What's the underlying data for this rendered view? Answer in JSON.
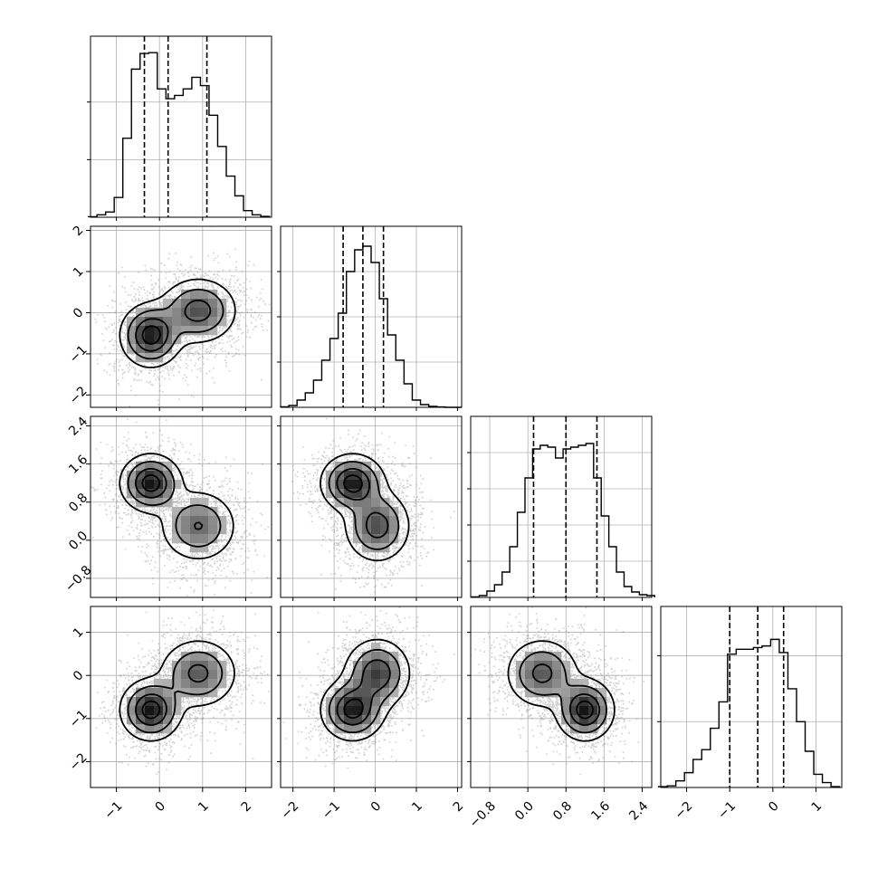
{
  "chart_data": {
    "type": "corner",
    "variables": [
      {
        "range": [
          -1.6,
          2.6
        ],
        "ticks": [
          -1,
          0,
          1,
          2
        ],
        "tick_labels": [
          "−1",
          "0",
          "1",
          "2"
        ],
        "quantiles": [
          -0.35,
          0.2,
          1.1
        ],
        "hist": {
          "x": [
            -1.55,
            -1.35,
            -1.15,
            -0.95,
            -0.75,
            -0.55,
            -0.35,
            -0.15,
            0.05,
            0.25,
            0.45,
            0.65,
            0.85,
            1.05,
            1.25,
            1.45,
            1.65,
            1.85,
            2.05,
            2.25,
            2.45
          ],
          "values": [
            0.3,
            1.5,
            3.2,
            12.0,
            48.0,
            90.0,
            99.5,
            100.0,
            78.0,
            72.0,
            74.0,
            78.0,
            85.0,
            80.0,
            62.0,
            43.0,
            25.0,
            13.0,
            4.0,
            1.5,
            0.5
          ]
        },
        "hist_ylim": [
          0,
          110
        ],
        "hist_yticks": [
          35,
          70
        ]
      },
      {
        "range": [
          -2.3,
          2.1
        ],
        "ticks": [
          -2,
          -1,
          0,
          1,
          2
        ],
        "tick_labels": [
          "−2",
          "−1",
          "0",
          "1",
          "2"
        ],
        "quantiles": [
          -0.78,
          -0.3,
          0.2
        ],
        "hist": {
          "x": [
            -2.2,
            -2.0,
            -1.8,
            -1.6,
            -1.4,
            -1.2,
            -1.0,
            -0.8,
            -0.6,
            -0.4,
            -0.2,
            0.0,
            0.2,
            0.4,
            0.6,
            0.8,
            1.0,
            1.2,
            1.4,
            1.6,
            1.8,
            2.0
          ],
          "values": [
            0.3,
            1.0,
            4.0,
            8.0,
            15.0,
            26.0,
            38.0,
            52.0,
            75.0,
            87.0,
            89.0,
            80.0,
            60.0,
            40.0,
            26.0,
            13.0,
            4.0,
            1.5,
            0.5,
            0.2,
            0.0,
            0.0
          ]
        },
        "hist_ylim": [
          0,
          100
        ],
        "hist_yticks": [
          25,
          50,
          75
        ]
      },
      {
        "range": [
          -1.2,
          2.6
        ],
        "ticks": [
          -0.8,
          0.0,
          0.8,
          1.6,
          2.4
        ],
        "tick_labels": [
          "−0.8",
          "0.0",
          "0.8",
          "1.6",
          "2.4"
        ],
        "quantiles": [
          0.12,
          0.8,
          1.45
        ],
        "hist": {
          "x": [
            -1.1,
            -0.94,
            -0.78,
            -0.62,
            -0.46,
            -0.3,
            -0.14,
            0.02,
            0.18,
            0.34,
            0.5,
            0.66,
            0.82,
            0.98,
            1.14,
            1.3,
            1.46,
            1.62,
            1.78,
            1.94,
            2.1,
            2.26,
            2.42,
            2.58
          ],
          "values": [
            0.3,
            1.0,
            3.5,
            7.0,
            14.0,
            28.0,
            47.0,
            66.0,
            82.0,
            84.0,
            83.0,
            77.0,
            82.0,
            83.0,
            84.0,
            85.0,
            66.0,
            45.0,
            28.0,
            14.0,
            6.0,
            3.0,
            1.5,
            1.0
          ]
        },
        "hist_ylim": [
          0,
          100
        ],
        "hist_yticks": [
          20,
          40,
          60,
          80
        ]
      },
      {
        "range": [
          -2.6,
          1.6
        ],
        "ticks": [
          -2,
          -1,
          0,
          1
        ],
        "tick_labels": [
          "−2",
          "−1",
          "0",
          "1"
        ],
        "quantiles": [
          -1.0,
          -0.35,
          0.25
        ],
        "hist": {
          "x": [
            -2.55,
            -2.35,
            -2.15,
            -1.95,
            -1.75,
            -1.55,
            -1.35,
            -1.15,
            -0.95,
            -0.75,
            -0.55,
            -0.35,
            -0.15,
            0.05,
            0.25,
            0.45,
            0.65,
            0.85,
            1.05,
            1.25,
            1.45
          ],
          "values": [
            0.5,
            1.0,
            4.0,
            9.0,
            17.0,
            23.0,
            36.0,
            52.0,
            81.0,
            84.0,
            84.0,
            85.0,
            86.0,
            90.0,
            82.0,
            60.0,
            40.0,
            22.0,
            8.0,
            3.0,
            0.5
          ]
        },
        "hist_ylim": [
          0,
          110
        ],
        "hist_yticks": [
          40,
          80
        ]
      }
    ],
    "modes": [
      {
        "mean": [
          -0.2,
          -0.55,
          1.2,
          -0.8
        ],
        "sd": [
          0.35,
          0.38,
          0.3,
          0.35
        ]
      },
      {
        "mean": [
          0.9,
          0.05,
          0.3,
          0.05
        ],
        "sd": [
          0.45,
          0.4,
          0.38,
          0.4
        ]
      }
    ]
  }
}
